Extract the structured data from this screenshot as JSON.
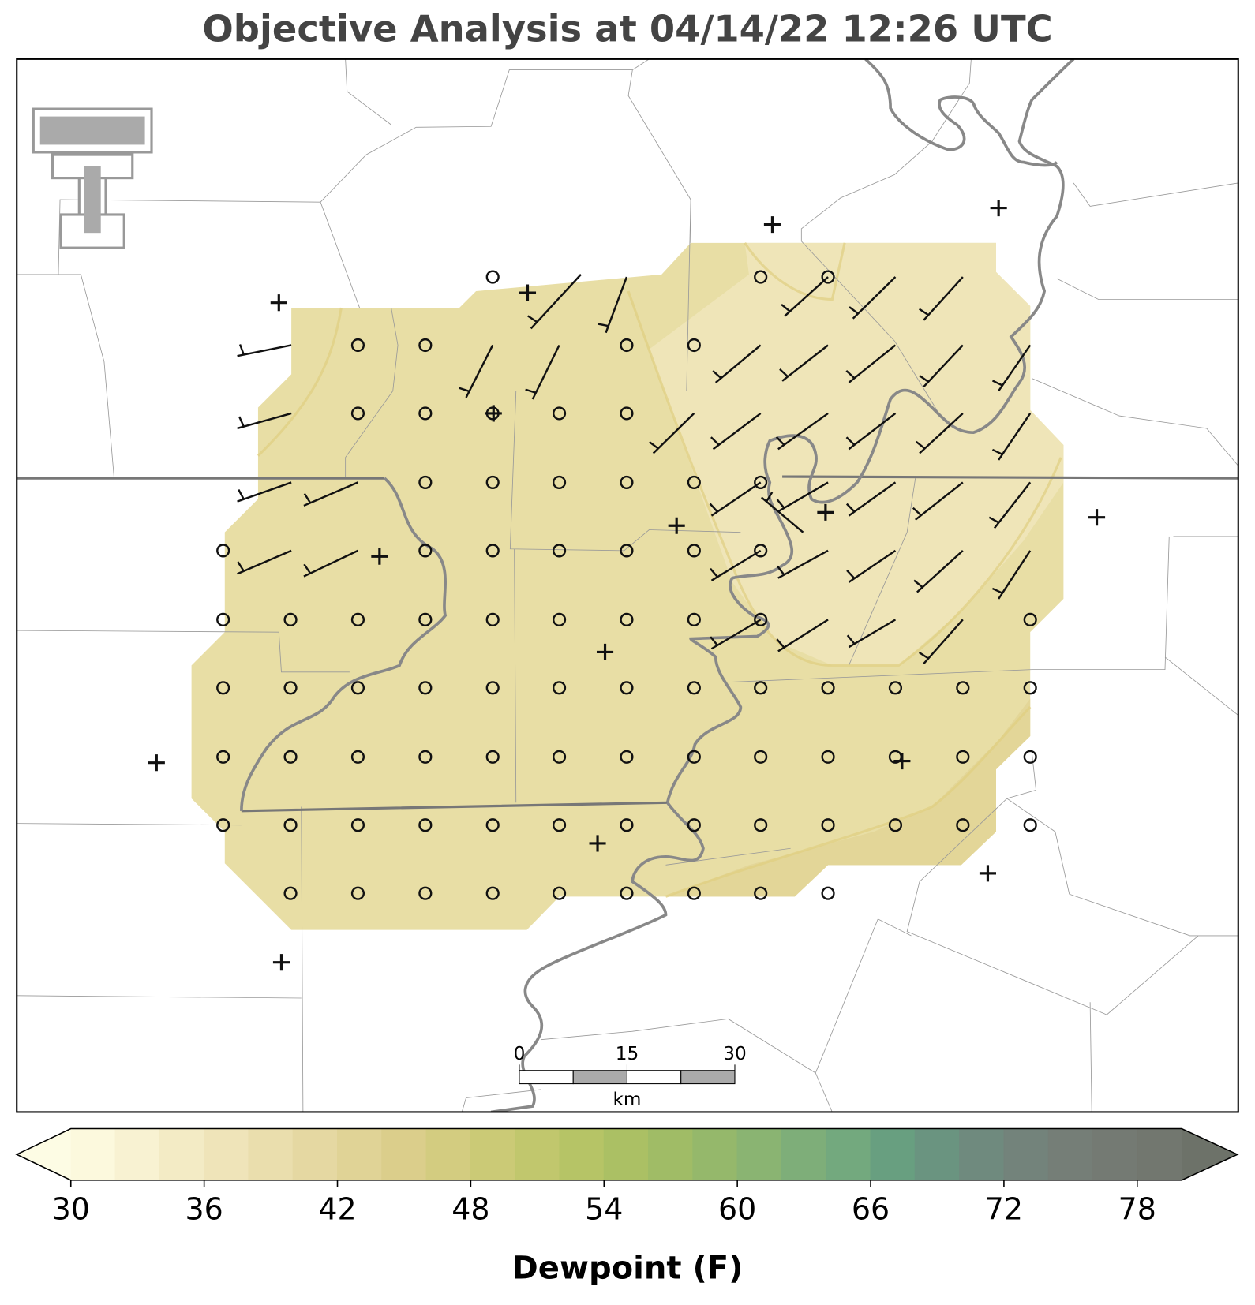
{
  "title": "Objective Analysis at 04/14/22 12:26 UTC",
  "scale_bar": {
    "ticks": [
      0,
      15,
      30
    ],
    "unit": "km"
  },
  "colorbar": {
    "label": "Dewpoint (F)",
    "range": [
      30,
      80
    ],
    "ticks": [
      30,
      36,
      42,
      48,
      54,
      60,
      66,
      72,
      78
    ],
    "colors": [
      "#fcf9dd",
      "#f8f2d2",
      "#f3ebc5",
      "#efe4b9",
      "#eadead",
      "#e5d8a2",
      "#e0d396",
      "#dbce8b",
      "#d3cc80",
      "#cbca76",
      "#c1c76d",
      "#b6c466",
      "#abc064",
      "#a0bc66",
      "#95b86b",
      "#8ab472",
      "#7eae79",
      "#73a97e",
      "#689f80",
      "#6a9480",
      "#6f8a7e",
      "#73837b",
      "#757e77",
      "#747a73",
      "#72776f"
    ],
    "under_color": "#fdfce4",
    "over_color": "#6d7269"
  }
}
